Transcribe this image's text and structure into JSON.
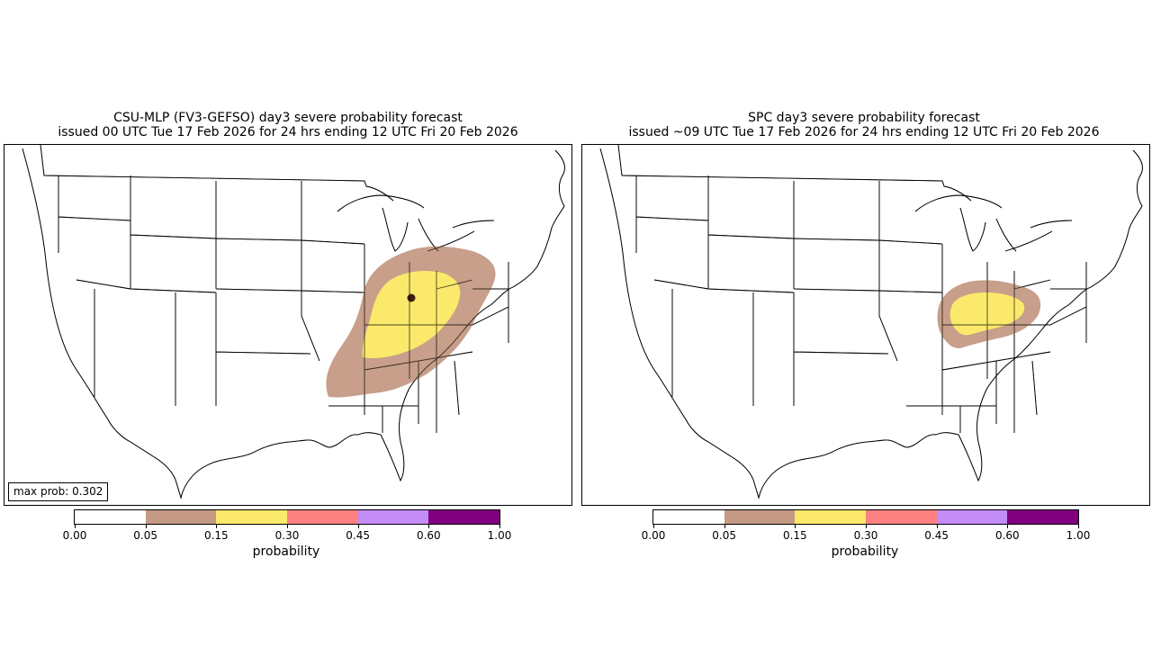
{
  "left_panel": {
    "title_line1": "CSU-MLP (FV3-GEFSO) day3 severe probability forecast",
    "title_line2": "issued 00 UTC Tue 17 Feb 2026 for 24 hrs ending 12 UTC Fri 20 Feb 2026",
    "max_prob_label": "max prob: 0.302"
  },
  "right_panel": {
    "title_line1": "SPC day3 severe probability forecast",
    "title_line2": "issued ~09 UTC Tue 17 Feb 2026 for 24 hrs ending 12 UTC Fri 20 Feb 2026"
  },
  "colorbar": {
    "label": "probability",
    "ticks": [
      "0.00",
      "0.05",
      "0.15",
      "0.30",
      "0.45",
      "0.60",
      "1.00"
    ],
    "colors": [
      "#ffffff",
      "#c49a84",
      "#fbe96b",
      "#fd8181",
      "#c38cf6",
      "#800080"
    ]
  },
  "colors": {
    "prob_05": "#c49a84",
    "prob_15": "#fbe96b",
    "max_point": "#3d1f0f",
    "boundary": "#000000"
  }
}
